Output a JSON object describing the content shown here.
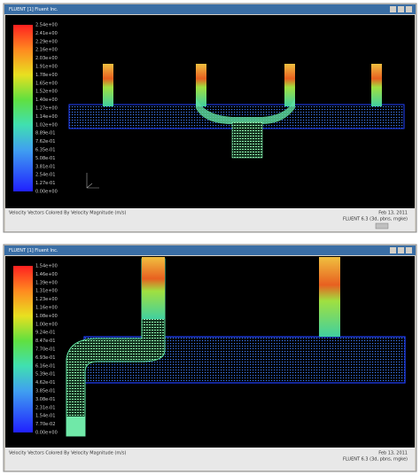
{
  "windows": [
    {
      "title": "FLUENT [1] Fluent Inc.",
      "legend_labels": [
        "2.54e+00",
        "2.41e+00",
        "2.29e+00",
        "2.16e+00",
        "2.03e+00",
        "1.91e+00",
        "1.78e+00",
        "1.65e+00",
        "1.52e+00",
        "1.40e+00",
        "1.27e+00",
        "1.14e+00",
        "1.02e+00",
        "8.89e-01",
        "7.62e-01",
        "6.35e-01",
        "5.08e-01",
        "3.81e-01",
        "2.54e-01",
        "1.27e-01",
        "0.00e+00"
      ],
      "caption": "Velocity Vectors Colored By Velocity Magnitude (m/s)",
      "date": "Feb 13, 2011",
      "solver": "FLUENT 6.3 (3d, pbns, rngke)"
    },
    {
      "title": "FLUENT [1] Fluent Inc.",
      "legend_labels": [
        "1.54e+00",
        "1.46e+00",
        "1.39e+00",
        "1.31e+00",
        "1.23e+00",
        "1.16e+00",
        "1.08e+00",
        "1.00e+00",
        "9.24e-01",
        "8.47e-01",
        "7.70e-01",
        "6.93e-01",
        "6.16e-01",
        "5.39e-01",
        "4.62e-01",
        "3.85e-01",
        "3.08e-01",
        "2.31e-01",
        "1.54e-01",
        "7.70e-02",
        "0.00e+00"
      ],
      "caption": "Velocity Vectors Colored By Velocity Magnitude (m/s)",
      "date": "Feb 13, 2011",
      "solver": "FLUENT 6.3 (3d, pbns, rngke)"
    }
  ]
}
